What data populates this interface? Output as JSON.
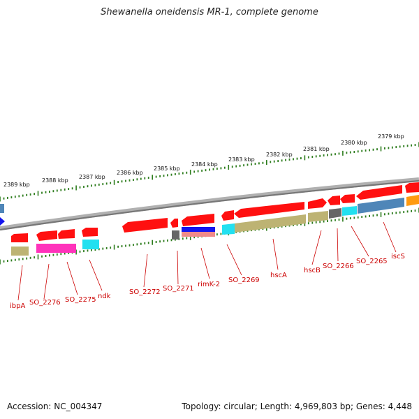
{
  "title": "Shewanella oneidensis MR-1, complete genome",
  "accession": "Accession: NC_004347",
  "summary": "Topology: circular; Length: 4,969,803 bp; Genes: 4,448",
  "colors": {
    "backbone": "#8c8c8c",
    "tick": "#2e7d1e",
    "gene_label": "#cc0000",
    "gene_red": "#ff1010",
    "pink": "#ff33bb",
    "cyan": "#22e0f0",
    "olive": "#bdb373",
    "gray": "#666666",
    "steel": "#4f86b8",
    "orange": "#ff9a10",
    "blue": "#1515ee",
    "salmon": "#f08a8a"
  },
  "kbp_labels": [
    "2389 kbp",
    "2388 kbp",
    "2387 kbp",
    "2386 kbp",
    "2385 kbp",
    "2384 kbp",
    "2383 kbp",
    "2382 kbp",
    "2381 kbp",
    "2380 kbp",
    "2379 kbp"
  ],
  "gene_labels": [
    "ibpA",
    "SO_2276",
    "SO_2275",
    "ndk",
    "SO_2272",
    "SO_2271",
    "rimK-2",
    "SO_2269",
    "hscA",
    "hscB",
    "SO_2266",
    "SO_2265",
    "iscS"
  ]
}
